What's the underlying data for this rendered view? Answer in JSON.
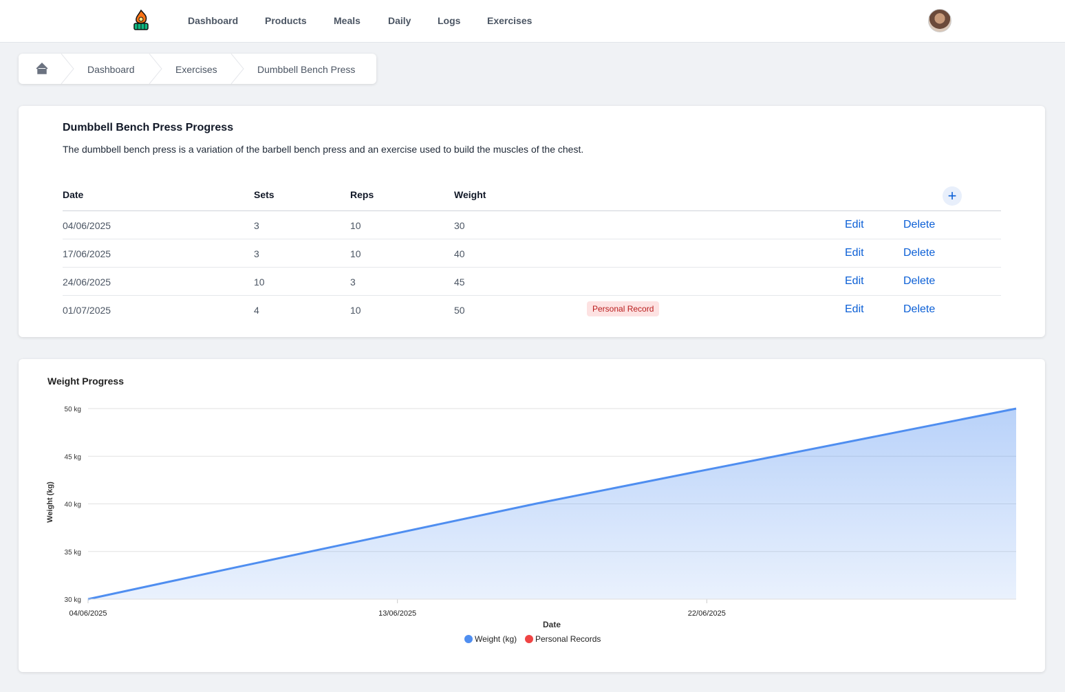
{
  "nav": {
    "items": [
      "Dashboard",
      "Products",
      "Meals",
      "Daily",
      "Logs",
      "Exercises"
    ]
  },
  "breadcrumb": [
    "Dashboard",
    "Exercises",
    "Dumbbell Bench Press"
  ],
  "exercise": {
    "title": "Dumbbell Bench Press Progress",
    "description": "The dumbbell bench press is a variation of the barbell bench press and an exercise used to build the muscles of the chest."
  },
  "table": {
    "headers": [
      "Date",
      "Sets",
      "Reps",
      "Weight"
    ],
    "rows": [
      {
        "date": "04/06/2025",
        "sets": 3,
        "reps": 10,
        "weight": 30
      },
      {
        "date": "17/06/2025",
        "sets": 3,
        "reps": 10,
        "weight": 40
      },
      {
        "date": "24/06/2025",
        "sets": 10,
        "reps": 3,
        "weight": 45
      },
      {
        "date": "01/07/2025",
        "sets": 4,
        "reps": 10,
        "weight": 50,
        "badge": "Personal Record"
      }
    ],
    "actions": [
      "Edit",
      "Delete"
    ]
  },
  "chart_data": {
    "type": "area",
    "title": "Weight Progress",
    "xlabel": "Date",
    "ylabel": "Weight (kg)",
    "x": [
      "2025-06-04",
      "2025-06-17",
      "2025-06-24",
      "2025-07-01"
    ],
    "series": [
      {
        "name": "Weight (kg)",
        "color": "#4f8ef0",
        "values": [
          30,
          40,
          45,
          50
        ]
      },
      {
        "name": "Personal Records",
        "color": "#ef4444"
      }
    ],
    "xlim": [
      "2025-06-04",
      "2025-07-01"
    ],
    "xticks": [
      {
        "value": "2025-06-04",
        "label": "04/06/2025"
      },
      {
        "value": "2025-06-13",
        "label": "13/06/2025"
      },
      {
        "value": "2025-06-22",
        "label": "22/06/2025"
      }
    ],
    "ylim": [
      30,
      50
    ],
    "yticks": [
      {
        "value": 30,
        "label": "30 kg"
      },
      {
        "value": 35,
        "label": "35 kg"
      },
      {
        "value": 40,
        "label": "40 kg"
      },
      {
        "value": 45,
        "label": "45 kg"
      },
      {
        "value": 50,
        "label": "50 kg"
      }
    ],
    "grid": true,
    "legend": "bottom"
  }
}
